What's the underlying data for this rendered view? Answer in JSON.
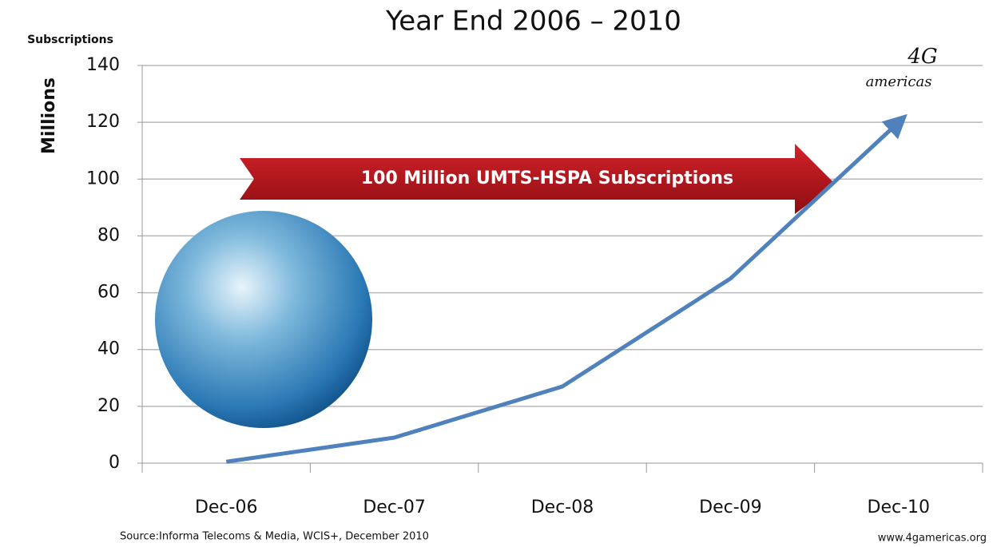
{
  "chart_data": {
    "type": "line",
    "title": "Year End 2006 – 2010",
    "y_unit_label": "Subscriptions",
    "y_axis_label": "Millions",
    "annotation": "100 Million UMTS-HSPA Subscriptions",
    "source": "Source:Informa Telecoms & Media, WCIS+, December 2010",
    "website": "www.4gamericas.org",
    "logo": [
      "4G",
      "americas"
    ],
    "categories": [
      "Dec-06",
      "Dec-07",
      "Dec-08",
      "Dec-09",
      "Dec-10"
    ],
    "series": [
      {
        "name": "UMTS-HSPA Subscriptions",
        "color": "#4f81bd",
        "values": [
          0.5,
          9,
          27,
          65,
          120
        ]
      }
    ],
    "ylim": [
      0,
      140
    ],
    "yticks": [
      0,
      20,
      40,
      60,
      80,
      100,
      120,
      140
    ],
    "grid": true
  }
}
